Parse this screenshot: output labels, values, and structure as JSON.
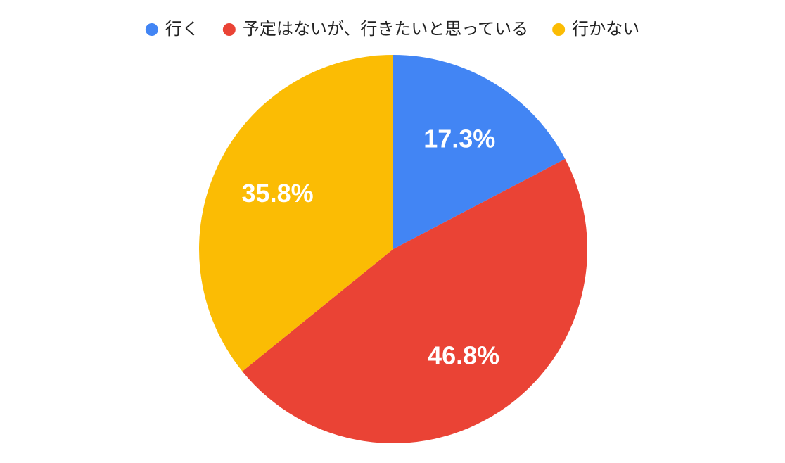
{
  "chart_data": {
    "type": "pie",
    "categories": [
      "行く",
      "予定はないが、行きたいと思っている",
      "行かない"
    ],
    "values": [
      17.3,
      46.8,
      35.8
    ],
    "value_labels": [
      "17.3%",
      "46.8%",
      "35.8%"
    ],
    "colors": [
      "#4285f4",
      "#ea4335",
      "#fbbc04"
    ],
    "legend": "top"
  }
}
